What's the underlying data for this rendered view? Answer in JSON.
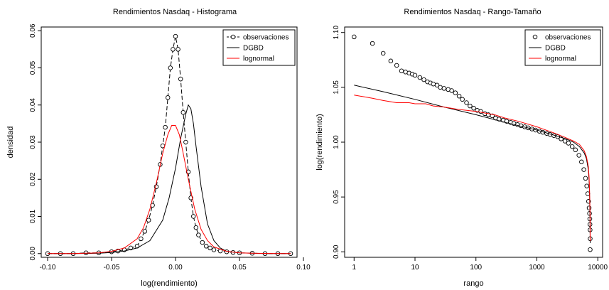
{
  "chart_data": [
    {
      "type": "line",
      "title": "Rendimientos Nasdaq - Histograma",
      "xlabel": "log(rendimiento)",
      "ylabel": "densidad",
      "xlim": [
        -0.105,
        0.095
      ],
      "ylim": [
        -0.001,
        0.061
      ],
      "x_ticks": [
        -0.1,
        -0.05,
        0.0,
        0.05,
        0.1
      ],
      "x_tick_labels": [
        "-0.10",
        "-0.05",
        "0.00",
        "0.05",
        "0.10"
      ],
      "y_ticks": [
        0.0,
        0.01,
        0.02,
        0.03,
        0.04,
        0.05,
        0.06
      ],
      "y_tick_labels": [
        "0.00",
        "0.01",
        "0.02",
        "0.03",
        "0.04",
        "0.05",
        "0.06"
      ],
      "legend_position": "top-right",
      "legend": [
        "observaciones",
        "DGBD",
        "lognormal"
      ],
      "colors": {
        "observaciones": "#000000",
        "DGBD": "#000000",
        "lognormal": "#ff0000"
      },
      "grid": false,
      "series": [
        {
          "name": "observaciones",
          "style": "circles-dashed",
          "x": [
            -0.1,
            -0.09,
            -0.08,
            -0.07,
            -0.06,
            -0.05,
            -0.045,
            -0.04,
            -0.035,
            -0.03,
            -0.027,
            -0.024,
            -0.021,
            -0.018,
            -0.015,
            -0.012,
            -0.01,
            -0.008,
            -0.006,
            -0.004,
            -0.002,
            0.0,
            0.002,
            0.004,
            0.006,
            0.008,
            0.01,
            0.012,
            0.014,
            0.016,
            0.018,
            0.021,
            0.024,
            0.027,
            0.03,
            0.035,
            0.04,
            0.045,
            0.05,
            0.06,
            0.07,
            0.08,
            0.09
          ],
          "y": [
            0.0,
            0.0,
            0.0,
            0.0002,
            0.0002,
            0.0005,
            0.0007,
            0.001,
            0.0015,
            0.002,
            0.004,
            0.006,
            0.009,
            0.013,
            0.018,
            0.024,
            0.029,
            0.034,
            0.042,
            0.05,
            0.055,
            0.0585,
            0.055,
            0.047,
            0.038,
            0.03,
            0.022,
            0.015,
            0.01,
            0.007,
            0.005,
            0.003,
            0.002,
            0.0015,
            0.001,
            0.0007,
            0.0005,
            0.0003,
            0.0002,
            0.0001,
            0.0,
            0.0,
            0.0
          ]
        },
        {
          "name": "DGBD",
          "style": "line",
          "x": [
            -0.1,
            -0.08,
            -0.06,
            -0.05,
            -0.04,
            -0.03,
            -0.02,
            -0.01,
            -0.005,
            0.0,
            0.004,
            0.008,
            0.01,
            0.012,
            0.014,
            0.016,
            0.02,
            0.025,
            0.03,
            0.035,
            0.04,
            0.05,
            0.06,
            0.07,
            0.09
          ],
          "y": [
            0.0,
            0.0,
            0.0001,
            0.0003,
            0.0007,
            0.0015,
            0.0035,
            0.009,
            0.015,
            0.023,
            0.031,
            0.0375,
            0.04,
            0.039,
            0.035,
            0.029,
            0.018,
            0.008,
            0.0035,
            0.0015,
            0.0006,
            0.0002,
            0.0001,
            0.0,
            0.0
          ]
        },
        {
          "name": "lognormal",
          "style": "line",
          "x": [
            -0.1,
            -0.08,
            -0.06,
            -0.05,
            -0.04,
            -0.03,
            -0.025,
            -0.02,
            -0.015,
            -0.01,
            -0.006,
            -0.003,
            0.0,
            0.003,
            0.006,
            0.01,
            0.015,
            0.02,
            0.025,
            0.03,
            0.04,
            0.05,
            0.06,
            0.08,
            0.09
          ],
          "y": [
            0.0,
            0.0,
            0.0002,
            0.0006,
            0.0015,
            0.004,
            0.007,
            0.012,
            0.019,
            0.027,
            0.032,
            0.0345,
            0.0345,
            0.032,
            0.027,
            0.02,
            0.012,
            0.0065,
            0.0035,
            0.0018,
            0.0006,
            0.0002,
            0.0001,
            0.0,
            0.0
          ]
        }
      ]
    },
    {
      "type": "scatter",
      "title": "Rendimientos Nasdaq - Rango-Tamaño",
      "xlabel": "rango",
      "ylabel": "log(rendimiento)",
      "xscale": "log",
      "xlim": [
        0.7,
        12000
      ],
      "ylim": [
        0.895,
        1.105
      ],
      "x_ticks": [
        1,
        10,
        100,
        1000,
        10000
      ],
      "x_tick_labels": [
        "1",
        "10",
        "100",
        "1000",
        "10000"
      ],
      "y_ticks": [
        0.9,
        0.95,
        1.0,
        1.05,
        1.1
      ],
      "y_tick_labels": [
        "0.90",
        "0.95",
        "1.00",
        "1.05",
        "1.10"
      ],
      "legend_position": "top-right",
      "legend": [
        "observaciones",
        "DGBD",
        "lognormal"
      ],
      "colors": {
        "observaciones": "#000000",
        "DGBD": "#000000",
        "lognormal": "#ff0000"
      },
      "grid": false,
      "series": [
        {
          "name": "observaciones",
          "style": "circles",
          "x": [
            1,
            2,
            3,
            4,
            5,
            6,
            7,
            8,
            9,
            10,
            12,
            14,
            16,
            18,
            20,
            23,
            26,
            30,
            35,
            40,
            46,
            53,
            60,
            70,
            80,
            92,
            105,
            120,
            140,
            160,
            185,
            210,
            240,
            280,
            320,
            370,
            420,
            480,
            550,
            630,
            720,
            830,
            950,
            1100,
            1250,
            1450,
            1650,
            1900,
            2200,
            2500,
            2900,
            3300,
            3800,
            4300,
            4900,
            5400,
            5900,
            6300,
            6600,
            6850,
            7050,
            7200,
            7320,
            7400,
            7440,
            7470,
            7490,
            7500
          ],
          "y": [
            1.096,
            1.09,
            1.081,
            1.074,
            1.07,
            1.065,
            1.064,
            1.063,
            1.062,
            1.061,
            1.059,
            1.057,
            1.055,
            1.054,
            1.053,
            1.052,
            1.05,
            1.049,
            1.048,
            1.047,
            1.045,
            1.042,
            1.039,
            1.036,
            1.033,
            1.031,
            1.029,
            1.028,
            1.026,
            1.025,
            1.024,
            1.022,
            1.021,
            1.02,
            1.019,
            1.018,
            1.017,
            1.016,
            1.015,
            1.014,
            1.013,
            1.012,
            1.011,
            1.01,
            1.009,
            1.008,
            1.007,
            1.006,
            1.005,
            1.003,
            1.001,
            0.999,
            0.996,
            0.993,
            0.988,
            0.982,
            0.975,
            0.967,
            0.96,
            0.953,
            0.946,
            0.94,
            0.935,
            0.93,
            0.925,
            0.92,
            0.912,
            0.902
          ]
        },
        {
          "name": "DGBD",
          "style": "line",
          "x": [
            1,
            3,
            10,
            30,
            100,
            300,
            1000,
            2000,
            3000,
            4000,
            5000,
            6000,
            6500,
            7000,
            7200,
            7350,
            7450,
            7500
          ],
          "y": [
            1.052,
            1.046,
            1.039,
            1.032,
            1.025,
            1.018,
            1.011,
            1.006,
            1.003,
            1.0,
            0.996,
            0.99,
            0.985,
            0.975,
            0.965,
            0.95,
            0.93,
            0.908
          ]
        },
        {
          "name": "lognormal",
          "style": "line",
          "x": [
            1,
            2,
            3,
            5,
            8,
            10,
            15,
            20,
            30,
            50,
            100,
            200,
            300,
            500,
            1000,
            2000,
            3000,
            4000,
            5000,
            6000,
            6500,
            7000,
            7200,
            7350,
            7450,
            7500
          ],
          "y": [
            1.043,
            1.04,
            1.038,
            1.036,
            1.036,
            1.035,
            1.035,
            1.033,
            1.032,
            1.03,
            1.028,
            1.025,
            1.022,
            1.019,
            1.014,
            1.008,
            1.004,
            1.001,
            0.998,
            0.992,
            0.987,
            0.978,
            0.968,
            0.955,
            0.935,
            0.91
          ]
        }
      ]
    }
  ]
}
